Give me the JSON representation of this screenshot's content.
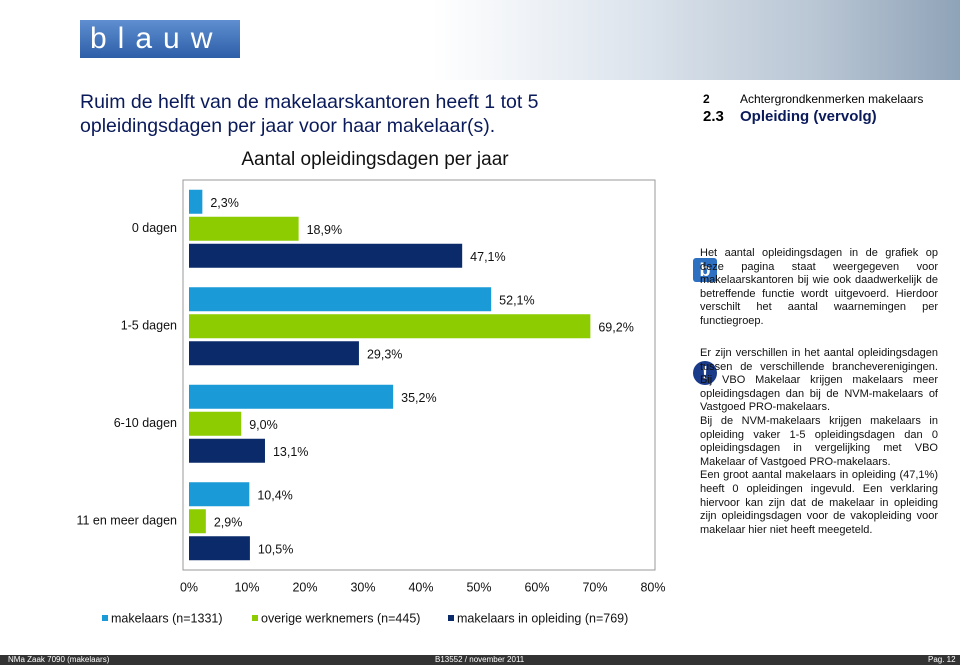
{
  "logo": "blauw",
  "header": {
    "title": "Ruim de helft van de makelaarskantoren heeft 1 tot 5 opleidingsdagen per jaar voor haar makelaar(s).",
    "section_number": "2",
    "section_title": "Achtergrondkenmerken makelaars",
    "subsection_number": "2.3",
    "subsection_title": "Opleiding (vervolg)"
  },
  "chart_data": {
    "type": "hbar",
    "title": "Aantal opleidingsdagen per jaar",
    "categories": [
      "0 dagen",
      "1-5 dagen",
      "6-10 dagen",
      "11 en meer dagen"
    ],
    "series": [
      {
        "name": "makelaars (n=1331)",
        "color": "#1a9ad6",
        "values": [
          2.3,
          52.1,
          35.2,
          10.4
        ],
        "value_labels": [
          "2,3%",
          "52,1%",
          "35,2%",
          "10,4%"
        ]
      },
      {
        "name": "overige werknemers (n=445)",
        "color": "#8ccc00",
        "values": [
          18.9,
          69.2,
          9.0,
          2.9
        ],
        "value_labels": [
          "18,9%",
          "69,2%",
          "9,0%",
          "2,9%"
        ]
      },
      {
        "name": "makelaars in opleiding (n=769)",
        "color": "#0a2a6a",
        "values": [
          47.1,
          29.3,
          13.1,
          10.5
        ],
        "value_labels": [
          "47,1%",
          "29,3%",
          "13,1%",
          "10,5%"
        ]
      }
    ],
    "xlim": [
      0,
      80
    ],
    "xticks": [
      {
        "value": 0,
        "label": "0%"
      },
      {
        "value": 10,
        "label": "10%"
      },
      {
        "value": 20,
        "label": "20%"
      },
      {
        "value": 30,
        "label": "30%"
      },
      {
        "value": 40,
        "label": "40%"
      },
      {
        "value": 50,
        "label": "50%"
      },
      {
        "value": 60,
        "label": "60%"
      },
      {
        "value": 70,
        "label": "70%"
      },
      {
        "value": 80,
        "label": "80%"
      }
    ],
    "grid": false
  },
  "notes": [
    {
      "paragraphs": [
        "Het aantal opleidingsdagen in de grafiek op deze pagina staat weergegeven voor makelaarskantoren bij wie ook daadwerkelijk de betreffende functie wordt uitgevoerd. Hierdoor verschilt het aantal waarnemingen per functiegroep."
      ]
    },
    {
      "paragraphs": [
        "Er zijn verschillen in het aantal opleidingsdagen tussen de verschillende brancheverenigingen. Bij VBO Makelaar krijgen makelaars meer opleidingsdagen dan bij de NVM-makelaars of Vastgoed PRO-makelaars.",
        "Bij de NVM-makelaars krijgen makelaars in opleiding vaker 1-5 opleidingsdagen dan 0 opleidingsdagen in vergelijking met VBO Makelaar of Vastgoed PRO-makelaars.",
        "Een groot aantal makelaars in opleiding (47,1%) heeft 0 opleidingen ingevuld. Een verklaring hiervoor kan zijn dat de makelaar in opleiding zijn opleidingsdagen voor de vakopleiding voor makelaar hier niet heeft meegeteld."
      ]
    }
  ],
  "footer": {
    "left": "NMa Zaak 7090 (makelaars)",
    "center": "B13552 / november 2011",
    "right": "Pag. 12"
  }
}
